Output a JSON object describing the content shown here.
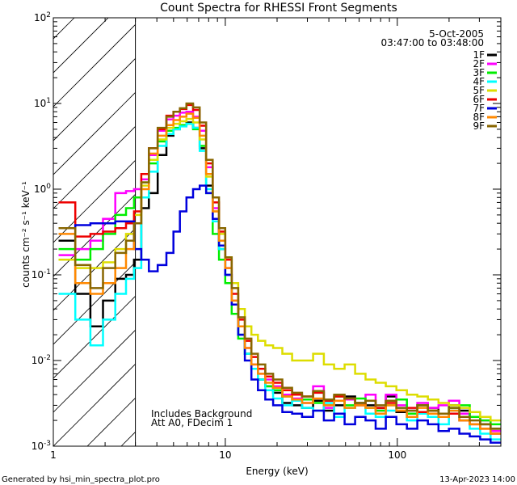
{
  "chart_data": {
    "type": "line",
    "title": "Count Spectra for RHESSI Front Segments",
    "xlabel": "Energy (keV)",
    "ylabel": "counts cm⁻² s⁻¹ keV⁻¹",
    "xscale": "log",
    "yscale": "log",
    "xlim": [
      1,
      400
    ],
    "ylim": [
      0.001,
      100
    ],
    "x_ticks": [
      {
        "v": 1,
        "label": "1"
      },
      {
        "v": 10,
        "label": "10"
      },
      {
        "v": 100,
        "label": "100"
      }
    ],
    "y_ticks": [
      {
        "v": 0.001,
        "base": "10",
        "exp": "-3"
      },
      {
        "v": 0.01,
        "base": "10",
        "exp": "-2"
      },
      {
        "v": 0.1,
        "base": "10",
        "exp": "-1"
      },
      {
        "v": 1,
        "base": "10",
        "exp": "0"
      },
      {
        "v": 10,
        "base": "10",
        "exp": "1"
      },
      {
        "v": 100,
        "base": "10",
        "exp": "2"
      }
    ],
    "hatched_region_xmax_kev": 3,
    "date": "5-Oct-2005",
    "time_range": "03:47:00 to 03:48:00",
    "legend_position": "top-right",
    "annotations": [
      "Includes Background",
      "Att A0, FDecim 1"
    ],
    "x": [
      1.2,
      1.5,
      1.8,
      2.1,
      2.5,
      2.8,
      3.1,
      3.4,
      3.8,
      4.3,
      4.8,
      5.2,
      5.7,
      6.2,
      6.8,
      7.4,
      8.1,
      8.8,
      9.6,
      10.4,
      11.4,
      12.4,
      13.6,
      14.8,
      16.2,
      18,
      20,
      23,
      26,
      30,
      35,
      40,
      46,
      53,
      61,
      70,
      80,
      92,
      106,
      122,
      140,
      162,
      186,
      214,
      246,
      283,
      325,
      374
    ],
    "series": [
      {
        "name": "1F",
        "color": "#000000",
        "values": [
          0.25,
          0.06,
          0.025,
          0.05,
          0.09,
          0.1,
          0.15,
          0.6,
          0.9,
          2.5,
          4.2,
          5,
          5.6,
          6,
          5.2,
          3,
          1.1,
          0.45,
          0.2,
          0.1,
          0.045,
          0.02,
          0.012,
          0.008,
          0.006,
          0.005,
          0.0042,
          0.0032,
          0.003,
          0.0028,
          0.0034,
          0.0026,
          0.003,
          0.0038,
          0.0032,
          0.003,
          0.0028,
          0.0038,
          0.0025,
          0.0022,
          0.003,
          0.0028,
          0.0024,
          0.003,
          0.0026,
          0.0022,
          0.0018,
          0.0016
        ]
      },
      {
        "name": "2F",
        "color": "#ff00ff",
        "values": [
          0.17,
          0.2,
          0.25,
          0.45,
          0.9,
          0.95,
          1.0,
          1.3,
          2.5,
          4.8,
          6.5,
          7.2,
          7.8,
          8,
          7,
          4.8,
          1.8,
          0.6,
          0.25,
          0.12,
          0.05,
          0.025,
          0.014,
          0.009,
          0.007,
          0.006,
          0.005,
          0.004,
          0.0036,
          0.0032,
          0.005,
          0.0028,
          0.0034,
          0.0035,
          0.003,
          0.004,
          0.0026,
          0.004,
          0.003,
          0.0026,
          0.0032,
          0.0028,
          0.003,
          0.0034,
          0.0024,
          0.0022,
          0.002,
          0.0015
        ]
      },
      {
        "name": "3F",
        "color": "#00ee00",
        "values": [
          0.2,
          0.15,
          0.2,
          0.3,
          0.5,
          0.6,
          0.8,
          1.2,
          2.0,
          3.6,
          4.8,
          5.2,
          5.6,
          5.8,
          5,
          3.2,
          0.9,
          0.3,
          0.15,
          0.08,
          0.035,
          0.018,
          0.012,
          0.008,
          0.006,
          0.005,
          0.0045,
          0.0038,
          0.0034,
          0.0035,
          0.0032,
          0.003,
          0.0038,
          0.003,
          0.0036,
          0.0028,
          0.0026,
          0.003,
          0.0035,
          0.0024,
          0.003,
          0.0026,
          0.0022,
          0.0028,
          0.003,
          0.0022,
          0.002,
          0.0018
        ]
      },
      {
        "name": "4F",
        "color": "#00ffff",
        "values": [
          0.06,
          0.03,
          0.015,
          0.03,
          0.06,
          0.09,
          0.12,
          0.8,
          1.6,
          3.2,
          4.4,
          5,
          5.4,
          5.8,
          5.2,
          2.8,
          1.0,
          0.42,
          0.2,
          0.1,
          0.045,
          0.02,
          0.012,
          0.008,
          0.006,
          0.0045,
          0.0036,
          0.003,
          0.0034,
          0.0028,
          0.0026,
          0.0032,
          0.0022,
          0.0028,
          0.003,
          0.0024,
          0.0022,
          0.0026,
          0.0028,
          0.002,
          0.0024,
          0.0022,
          0.0018,
          0.0026,
          0.002,
          0.0016,
          0.0014,
          0.0012
        ]
      },
      {
        "name": "5F",
        "color": "#dddd00",
        "values": [
          0.15,
          0.12,
          0.12,
          0.14,
          0.2,
          0.3,
          0.5,
          1.1,
          2.2,
          3.8,
          5.2,
          5.8,
          6.2,
          6.6,
          6.0,
          3.8,
          1.4,
          0.55,
          0.3,
          0.16,
          0.08,
          0.04,
          0.025,
          0.02,
          0.017,
          0.015,
          0.014,
          0.012,
          0.01,
          0.01,
          0.012,
          0.009,
          0.008,
          0.009,
          0.007,
          0.006,
          0.0055,
          0.005,
          0.0045,
          0.004,
          0.0038,
          0.0035,
          0.0032,
          0.003,
          0.0028,
          0.0025,
          0.0022,
          0.002
        ]
      },
      {
        "name": "6F",
        "color": "#ee0000",
        "values": [
          0.7,
          0.28,
          0.3,
          0.32,
          0.35,
          0.4,
          0.55,
          1.5,
          3.0,
          5.0,
          7.2,
          8.0,
          8.6,
          9.6,
          8.4,
          5.5,
          2.0,
          0.7,
          0.32,
          0.15,
          0.06,
          0.03,
          0.017,
          0.011,
          0.008,
          0.0065,
          0.0055,
          0.0045,
          0.004,
          0.0038,
          0.0042,
          0.0034,
          0.0038,
          0.0036,
          0.003,
          0.0034,
          0.0028,
          0.0032,
          0.0026,
          0.0028,
          0.0025,
          0.0026,
          0.0022,
          0.0024,
          0.002,
          0.0018,
          0.0016,
          0.0014
        ]
      },
      {
        "name": "7F",
        "color": "#0000dd",
        "values": [
          0.35,
          0.38,
          0.4,
          0.4,
          0.42,
          0.42,
          0.2,
          0.15,
          0.11,
          0.13,
          0.18,
          0.32,
          0.55,
          0.8,
          1.0,
          1.1,
          0.9,
          0.45,
          0.22,
          0.1,
          0.045,
          0.02,
          0.01,
          0.006,
          0.0045,
          0.0035,
          0.003,
          0.0025,
          0.0024,
          0.0022,
          0.0026,
          0.002,
          0.0024,
          0.0018,
          0.0022,
          0.002,
          0.0016,
          0.0022,
          0.0018,
          0.0016,
          0.002,
          0.0018,
          0.0015,
          0.0016,
          0.0014,
          0.0013,
          0.0012,
          0.0011
        ]
      },
      {
        "name": "8F",
        "color": "#ff8800",
        "values": [
          0.3,
          0.08,
          0.06,
          0.08,
          0.12,
          0.2,
          0.4,
          1.0,
          2.6,
          4.2,
          5.6,
          6.4,
          7.0,
          7.6,
          6.8,
          4.2,
          1.5,
          0.55,
          0.25,
          0.12,
          0.05,
          0.025,
          0.014,
          0.009,
          0.007,
          0.0055,
          0.0048,
          0.0038,
          0.0035,
          0.0032,
          0.0036,
          0.003,
          0.0034,
          0.0028,
          0.003,
          0.0028,
          0.0024,
          0.003,
          0.0026,
          0.0022,
          0.0028,
          0.0024,
          0.0022,
          0.0026,
          0.002,
          0.0018,
          0.0016,
          0.0014
        ]
      },
      {
        "name": "9F",
        "color": "#886600",
        "values": [
          0.35,
          0.13,
          0.07,
          0.12,
          0.18,
          0.25,
          0.4,
          1.2,
          3.0,
          5.2,
          7.0,
          8.0,
          8.8,
          10,
          9.0,
          6.0,
          2.2,
          0.8,
          0.35,
          0.16,
          0.07,
          0.032,
          0.018,
          0.012,
          0.009,
          0.007,
          0.006,
          0.0048,
          0.0042,
          0.0038,
          0.0044,
          0.0035,
          0.004,
          0.0036,
          0.0032,
          0.0034,
          0.003,
          0.0034,
          0.0028,
          0.0026,
          0.003,
          0.0026,
          0.0024,
          0.0028,
          0.0022,
          0.002,
          0.0018,
          0.0016
        ]
      }
    ]
  },
  "footer": {
    "left": "Generated by hsi_min_spectra_plot.pro",
    "right": "13-Apr-2023 14:00"
  }
}
